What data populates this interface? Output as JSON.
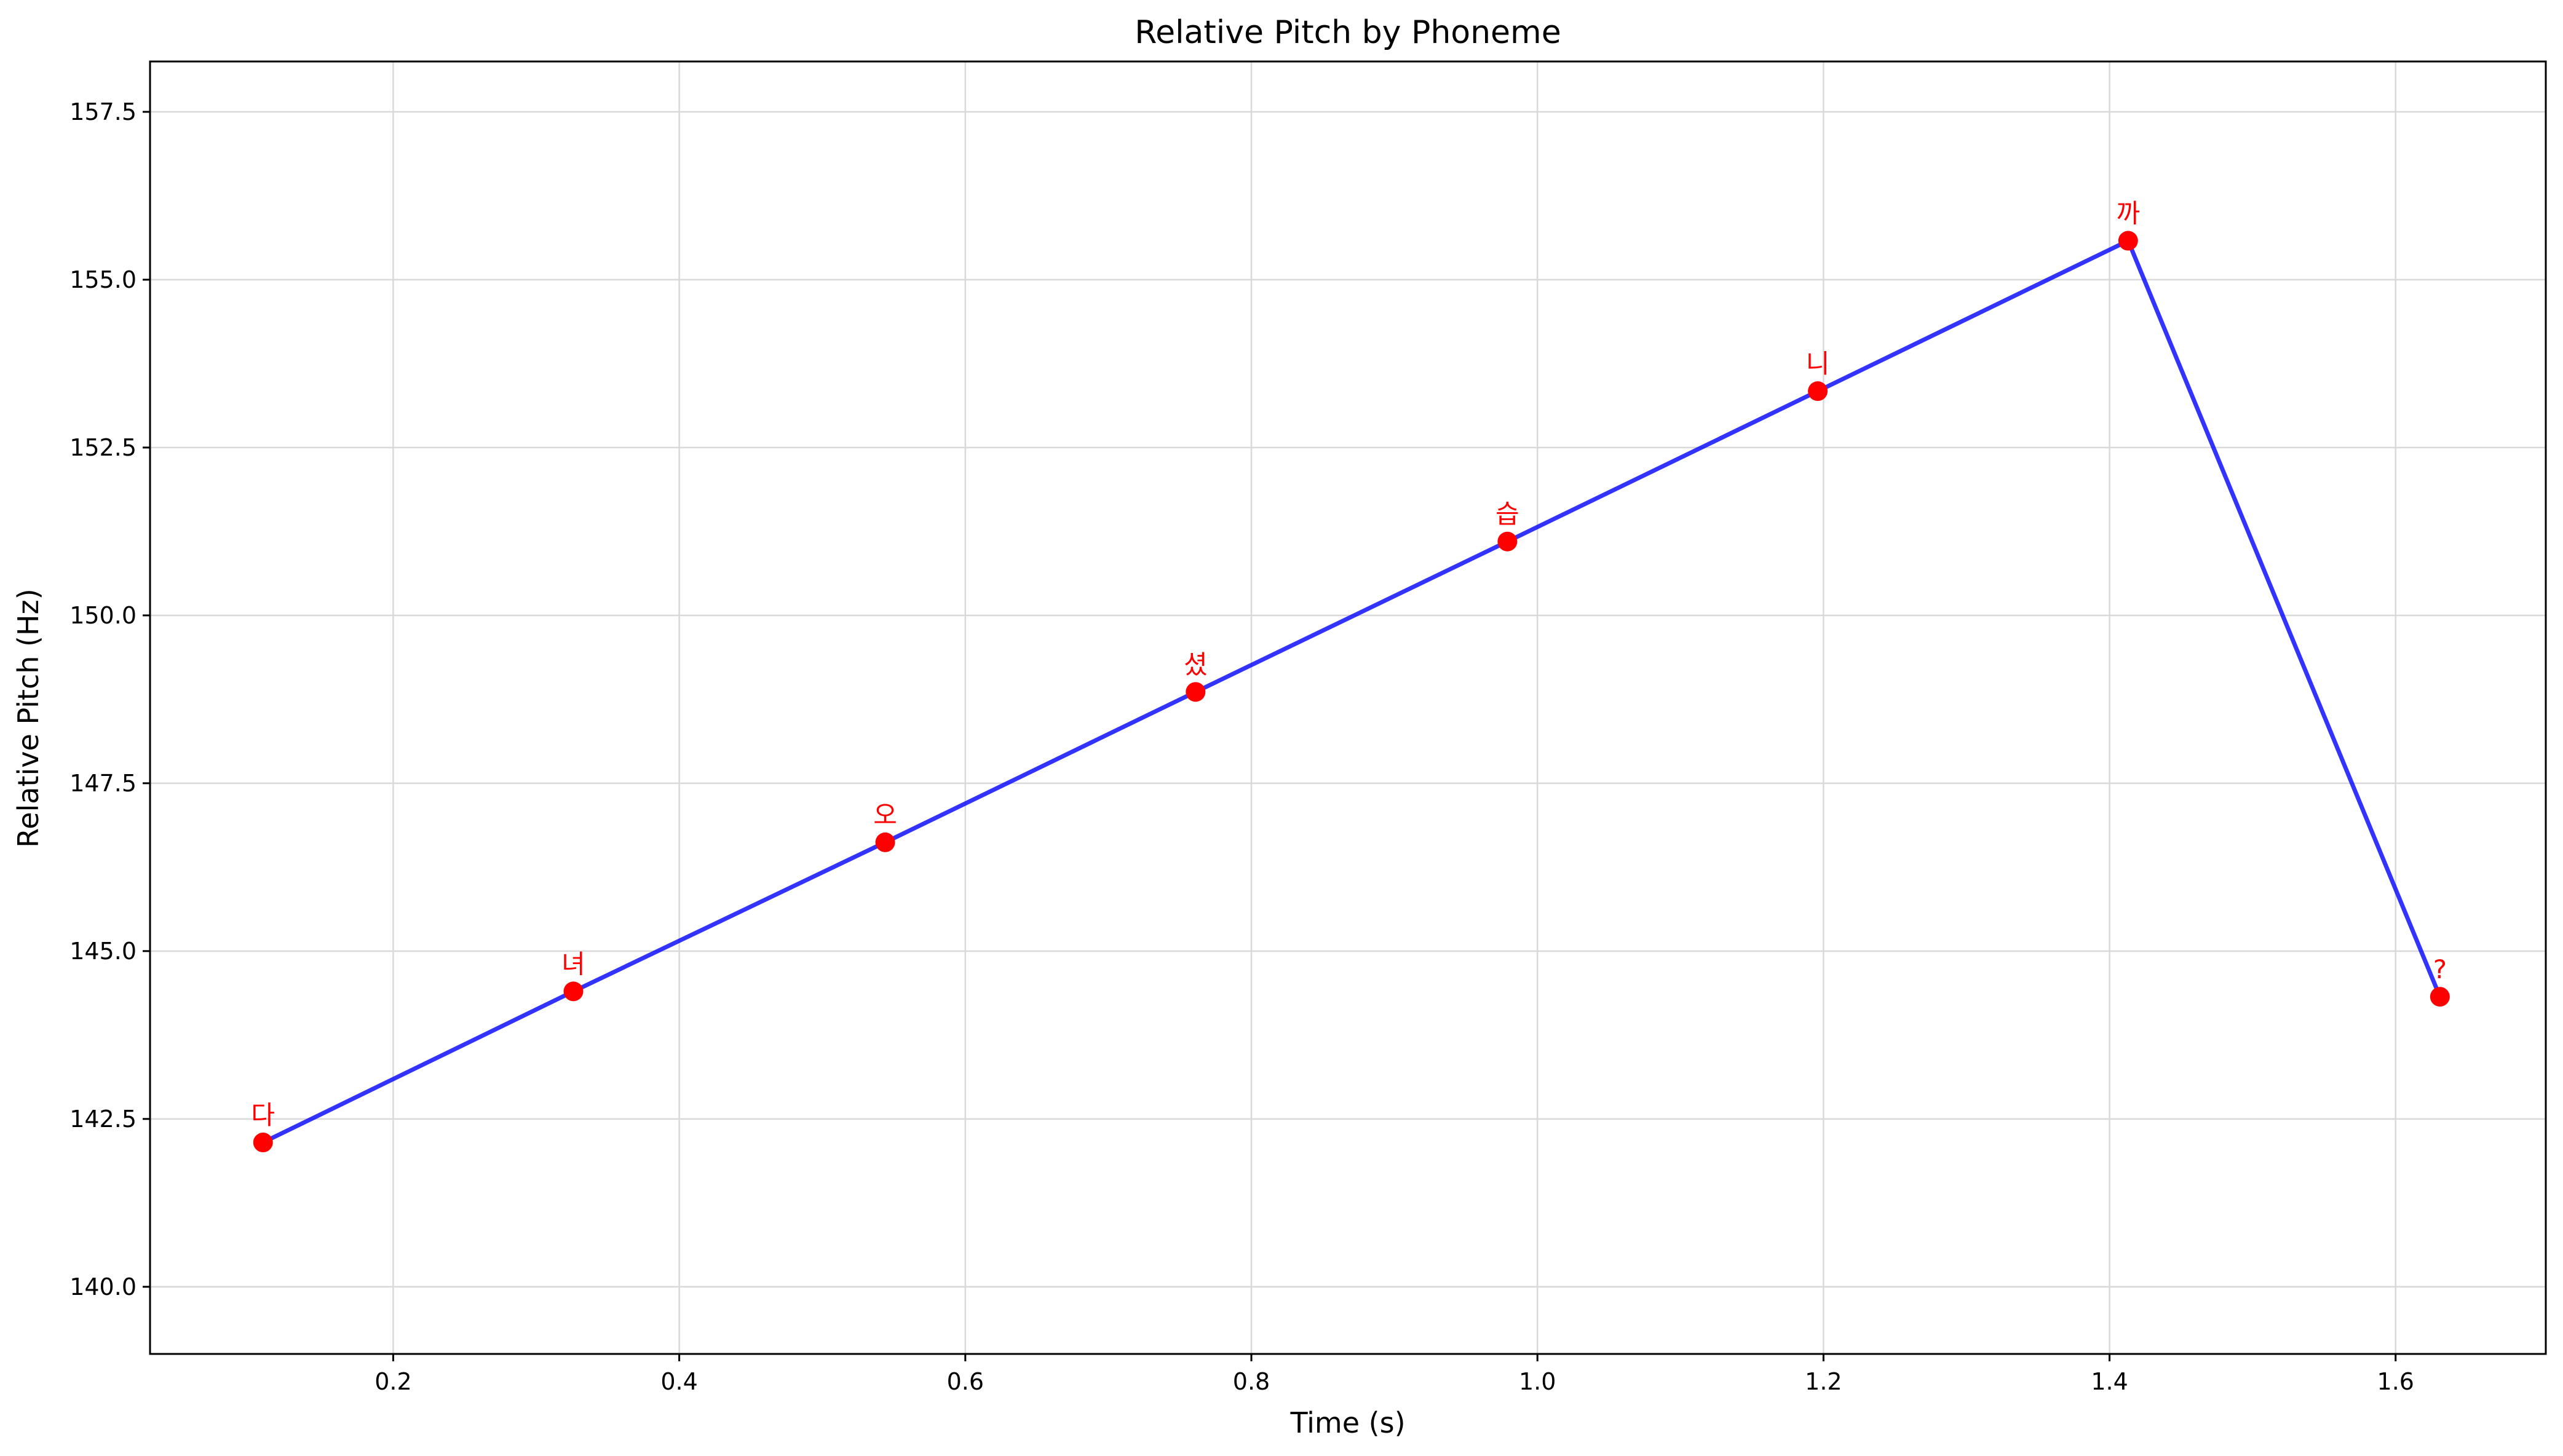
{
  "chart_data": {
    "type": "line",
    "title": "Relative Pitch by Phoneme",
    "xlabel": "Time (s)",
    "ylabel": "Relative Pitch (Hz)",
    "xlim": [
      0.03,
      1.705
    ],
    "ylim": [
      139.0,
      158.25
    ],
    "xticks": [
      0.2,
      0.4,
      0.6,
      0.8,
      1.0,
      1.2,
      1.4,
      1.6
    ],
    "xtick_labels": [
      "0.2",
      "0.4",
      "0.6",
      "0.8",
      "1.0",
      "1.2",
      "1.4",
      "1.6"
    ],
    "yticks": [
      140.0,
      142.5,
      145.0,
      147.5,
      150.0,
      152.5,
      155.0,
      157.5
    ],
    "ytick_labels": [
      "140.0",
      "142.5",
      "145.0",
      "147.5",
      "150.0",
      "152.5",
      "155.0",
      "157.5"
    ],
    "grid": true,
    "line_color": "#0000ff",
    "marker_color": "#ff0000",
    "label_color": "#ff0000",
    "series": [
      {
        "x": [
          0.109,
          0.326,
          0.544,
          0.761,
          0.979,
          1.196,
          1.413,
          1.631
        ],
        "values": [
          142.15,
          144.4,
          146.62,
          148.86,
          151.1,
          153.34,
          155.58,
          144.32
        ],
        "labels": [
          "다",
          "녀",
          "오",
          "셨",
          "습",
          "니",
          "까",
          "?"
        ]
      }
    ]
  }
}
